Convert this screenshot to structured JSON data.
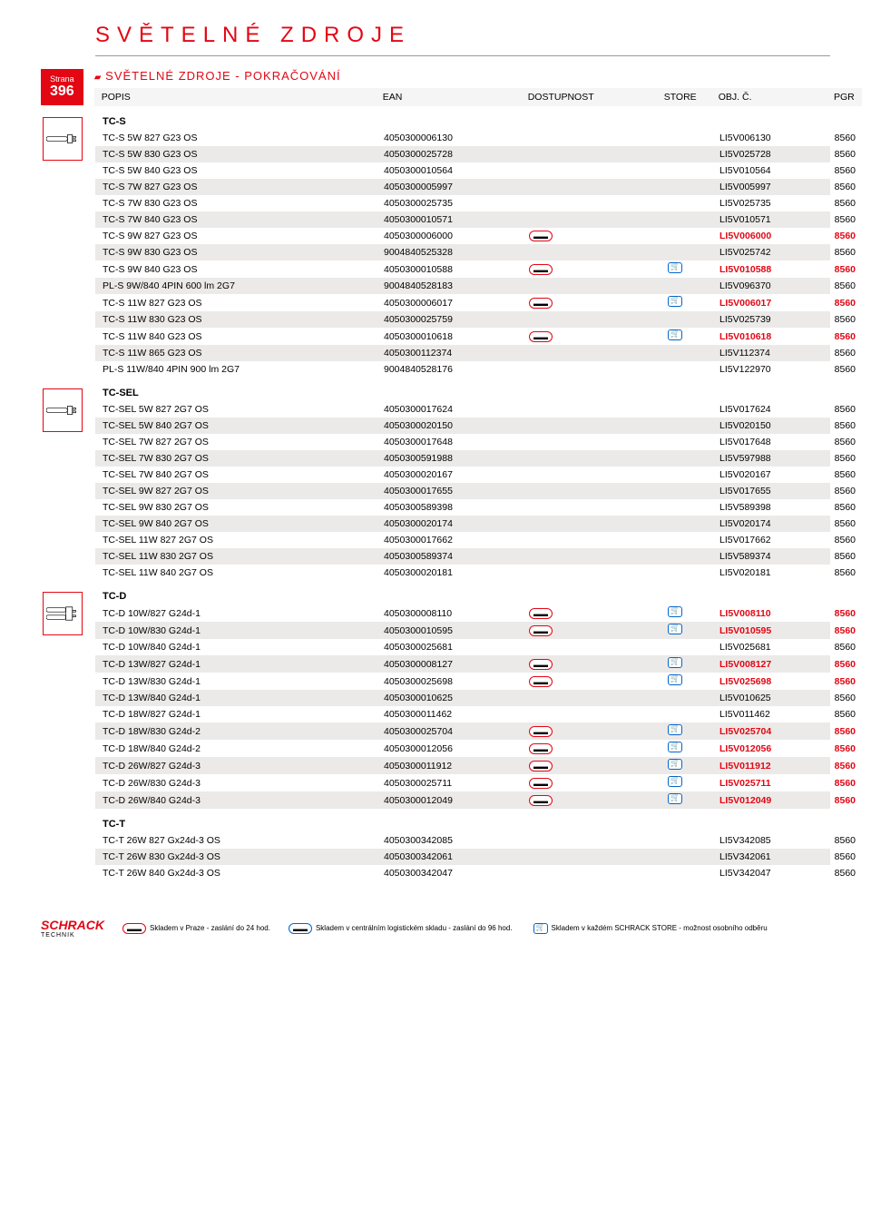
{
  "title": "SVĚTELNÉ ZDROJE",
  "page_label": "Strana",
  "page_num": "396",
  "subtitle": "SVĚTELNÉ ZDROJE - POKRAČOVÁNÍ",
  "columns": {
    "popis": "POPIS",
    "ean": "EAN",
    "dost": "DOSTUPNOST",
    "store": "STORE",
    "obj": "OBJ. Č.",
    "pgr": "PGR"
  },
  "sections": [
    {
      "head": "TC-S",
      "icon": "bulb1",
      "rows": [
        {
          "s": 0,
          "desc": "TC-S 5W 827 G23 OS",
          "ean": "4050300006130",
          "d": 0,
          "st": 0,
          "obj": "LI5V006130",
          "pgr": "8560",
          "hl": 0
        },
        {
          "s": 1,
          "desc": "TC-S 5W 830 G23 OS",
          "ean": "4050300025728",
          "d": 0,
          "st": 0,
          "obj": "LI5V025728",
          "pgr": "8560",
          "hl": 0
        },
        {
          "s": 0,
          "desc": "TC-S 5W 840 G23 OS",
          "ean": "4050300010564",
          "d": 0,
          "st": 0,
          "obj": "LI5V010564",
          "pgr": "8560",
          "hl": 0
        },
        {
          "s": 1,
          "desc": "TC-S 7W 827 G23 OS",
          "ean": "4050300005997",
          "d": 0,
          "st": 0,
          "obj": "LI5V005997",
          "pgr": "8560",
          "hl": 0
        },
        {
          "s": 0,
          "desc": "TC-S 7W 830 G23 OS",
          "ean": "4050300025735",
          "d": 0,
          "st": 0,
          "obj": "LI5V025735",
          "pgr": "8560",
          "hl": 0
        },
        {
          "s": 1,
          "desc": "TC-S 7W 840 G23 OS",
          "ean": "4050300010571",
          "d": 0,
          "st": 0,
          "obj": "LI5V010571",
          "pgr": "8560",
          "hl": 0
        },
        {
          "s": 0,
          "desc": "TC-S 9W 827 G23 OS",
          "ean": "4050300006000",
          "d": 1,
          "st": 0,
          "obj": "LI5V006000",
          "pgr": "8560",
          "hl": 1
        },
        {
          "s": 1,
          "desc": "TC-S 9W 830 G23 OS",
          "ean": "9004840525328",
          "d": 0,
          "st": 0,
          "obj": "LI5V025742",
          "pgr": "8560",
          "hl": 0
        },
        {
          "s": 0,
          "desc": "TC-S 9W 840 G23 OS",
          "ean": "4050300010588",
          "d": 1,
          "st": 1,
          "obj": "LI5V010588",
          "pgr": "8560",
          "hl": 1
        },
        {
          "s": 1,
          "desc": "PL-S 9W/840 4PIN 600 lm 2G7",
          "ean": "9004840528183",
          "d": 0,
          "st": 0,
          "obj": "LI5V096370",
          "pgr": "8560",
          "hl": 0
        },
        {
          "s": 0,
          "desc": "TC-S 11W 827 G23 OS",
          "ean": "4050300006017",
          "d": 1,
          "st": 1,
          "obj": "LI5V006017",
          "pgr": "8560",
          "hl": 1
        },
        {
          "s": 1,
          "desc": "TC-S 11W 830 G23 OS",
          "ean": "4050300025759",
          "d": 0,
          "st": 0,
          "obj": "LI5V025739",
          "pgr": "8560",
          "hl": 0
        },
        {
          "s": 0,
          "desc": "TC-S 11W 840 G23 OS",
          "ean": "4050300010618",
          "d": 1,
          "st": 1,
          "obj": "LI5V010618",
          "pgr": "8560",
          "hl": 1
        },
        {
          "s": 1,
          "desc": "TC-S 11W 865 G23 OS",
          "ean": "4050300112374",
          "d": 0,
          "st": 0,
          "obj": "LI5V112374",
          "pgr": "8560",
          "hl": 0
        },
        {
          "s": 0,
          "desc": "PL-S 11W/840 4PIN 900 lm 2G7",
          "ean": "9004840528176",
          "d": 0,
          "st": 0,
          "obj": "LI5V122970",
          "pgr": "8560",
          "hl": 0
        }
      ]
    },
    {
      "head": "TC-SEL",
      "icon": "bulb1",
      "rows": [
        {
          "s": 0,
          "desc": "TC-SEL 5W 827 2G7 OS",
          "ean": "4050300017624",
          "d": 0,
          "st": 0,
          "obj": "LI5V017624",
          "pgr": "8560",
          "hl": 0
        },
        {
          "s": 1,
          "desc": "TC-SEL 5W 840 2G7 OS",
          "ean": "4050300020150",
          "d": 0,
          "st": 0,
          "obj": "LI5V020150",
          "pgr": "8560",
          "hl": 0
        },
        {
          "s": 0,
          "desc": "TC-SEL 7W 827 2G7 OS",
          "ean": "4050300017648",
          "d": 0,
          "st": 0,
          "obj": "LI5V017648",
          "pgr": "8560",
          "hl": 0
        },
        {
          "s": 1,
          "desc": "TC-SEL 7W 830 2G7 OS",
          "ean": "4050300591988",
          "d": 0,
          "st": 0,
          "obj": "LI5V597988",
          "pgr": "8560",
          "hl": 0
        },
        {
          "s": 0,
          "desc": "TC-SEL 7W 840 2G7 OS",
          "ean": "4050300020167",
          "d": 0,
          "st": 0,
          "obj": "LI5V020167",
          "pgr": "8560",
          "hl": 0
        },
        {
          "s": 1,
          "desc": "TC-SEL 9W 827 2G7 OS",
          "ean": "4050300017655",
          "d": 0,
          "st": 0,
          "obj": "LI5V017655",
          "pgr": "8560",
          "hl": 0
        },
        {
          "s": 0,
          "desc": "TC-SEL 9W 830 2G7 OS",
          "ean": "4050300589398",
          "d": 0,
          "st": 0,
          "obj": "LI5V589398",
          "pgr": "8560",
          "hl": 0
        },
        {
          "s": 1,
          "desc": "TC-SEL 9W 840 2G7 OS",
          "ean": "4050300020174",
          "d": 0,
          "st": 0,
          "obj": "LI5V020174",
          "pgr": "8560",
          "hl": 0
        },
        {
          "s": 0,
          "desc": "TC-SEL 11W 827 2G7 OS",
          "ean": "4050300017662",
          "d": 0,
          "st": 0,
          "obj": "LI5V017662",
          "pgr": "8560",
          "hl": 0
        },
        {
          "s": 1,
          "desc": "TC-SEL 11W 830 2G7 OS",
          "ean": "4050300589374",
          "d": 0,
          "st": 0,
          "obj": "LI5V589374",
          "pgr": "8560",
          "hl": 0
        },
        {
          "s": 0,
          "desc": "TC-SEL 11W 840 2G7 OS",
          "ean": "4050300020181",
          "d": 0,
          "st": 0,
          "obj": "LI5V020181",
          "pgr": "8560",
          "hl": 0
        }
      ]
    },
    {
      "head": "TC-D",
      "icon": "bulb2",
      "rows": [
        {
          "s": 0,
          "desc": "TC-D 10W/827 G24d-1",
          "ean": "4050300008110",
          "d": 1,
          "st": 1,
          "obj": "LI5V008110",
          "pgr": "8560",
          "hl": 1
        },
        {
          "s": 1,
          "desc": "TC-D 10W/830 G24d-1",
          "ean": "4050300010595",
          "d": 1,
          "st": 1,
          "obj": "LI5V010595",
          "pgr": "8560",
          "hl": 1
        },
        {
          "s": 0,
          "desc": "TC-D 10W/840 G24d-1",
          "ean": "4050300025681",
          "d": 0,
          "st": 0,
          "obj": "LI5V025681",
          "pgr": "8560",
          "hl": 0
        },
        {
          "s": 1,
          "desc": "TC-D 13W/827 G24d-1",
          "ean": "4050300008127",
          "d": 1,
          "st": 1,
          "obj": "LI5V008127",
          "pgr": "8560",
          "hl": 1
        },
        {
          "s": 0,
          "desc": "TC-D 13W/830 G24d-1",
          "ean": "4050300025698",
          "d": 1,
          "st": 1,
          "obj": "LI5V025698",
          "pgr": "8560",
          "hl": 1
        },
        {
          "s": 1,
          "desc": "TC-D 13W/840 G24d-1",
          "ean": "4050300010625",
          "d": 0,
          "st": 0,
          "obj": "LI5V010625",
          "pgr": "8560",
          "hl": 0
        },
        {
          "s": 0,
          "desc": "TC-D 18W/827 G24d-1",
          "ean": "4050300011462",
          "d": 0,
          "st": 0,
          "obj": "LI5V011462",
          "pgr": "8560",
          "hl": 0
        },
        {
          "s": 1,
          "desc": "TC-D 18W/830 G24d-2",
          "ean": "4050300025704",
          "d": 1,
          "st": 1,
          "obj": "LI5V025704",
          "pgr": "8560",
          "hl": 1
        },
        {
          "s": 0,
          "desc": "TC-D 18W/840 G24d-2",
          "ean": "4050300012056",
          "d": 1,
          "st": 1,
          "obj": "LI5V012056",
          "pgr": "8560",
          "hl": 1
        },
        {
          "s": 1,
          "desc": "TC-D 26W/827 G24d-3",
          "ean": "4050300011912",
          "d": 1,
          "st": 1,
          "obj": "LI5V011912",
          "pgr": "8560",
          "hl": 1
        },
        {
          "s": 0,
          "desc": "TC-D 26W/830 G24d-3",
          "ean": "4050300025711",
          "d": 1,
          "st": 1,
          "obj": "LI5V025711",
          "pgr": "8560",
          "hl": 1
        },
        {
          "s": 1,
          "desc": "TC-D 26W/840 G24d-3",
          "ean": "4050300012049",
          "d": 1,
          "st": 1,
          "obj": "LI5V012049",
          "pgr": "8560",
          "hl": 1
        }
      ]
    },
    {
      "head": "TC-T",
      "icon": "",
      "rows": [
        {
          "s": 0,
          "desc": "TC-T 26W 827 Gx24d-3 OS",
          "ean": "4050300342085",
          "d": 0,
          "st": 0,
          "obj": "LI5V342085",
          "pgr": "8560",
          "hl": 0
        },
        {
          "s": 1,
          "desc": "TC-T 26W 830 Gx24d-3 OS",
          "ean": "4050300342061",
          "d": 0,
          "st": 0,
          "obj": "LI5V342061",
          "pgr": "8560",
          "hl": 0
        },
        {
          "s": 0,
          "desc": "TC-T 26W 840 Gx24d-3 OS",
          "ean": "4050300342047",
          "d": 0,
          "st": 0,
          "obj": "LI5V342047",
          "pgr": "8560",
          "hl": 0
        }
      ]
    }
  ],
  "footer": {
    "logo": "SCHRACK",
    "logo_sub": "TECHNIK",
    "items": [
      "Skladem v Praze - zaslání do 24 hod.",
      "Skladem v centrálním logistickém skladu - zaslání do 96 hod.",
      "Skladem v každém SCHRACK STORE - možnost osobního odběru"
    ]
  }
}
